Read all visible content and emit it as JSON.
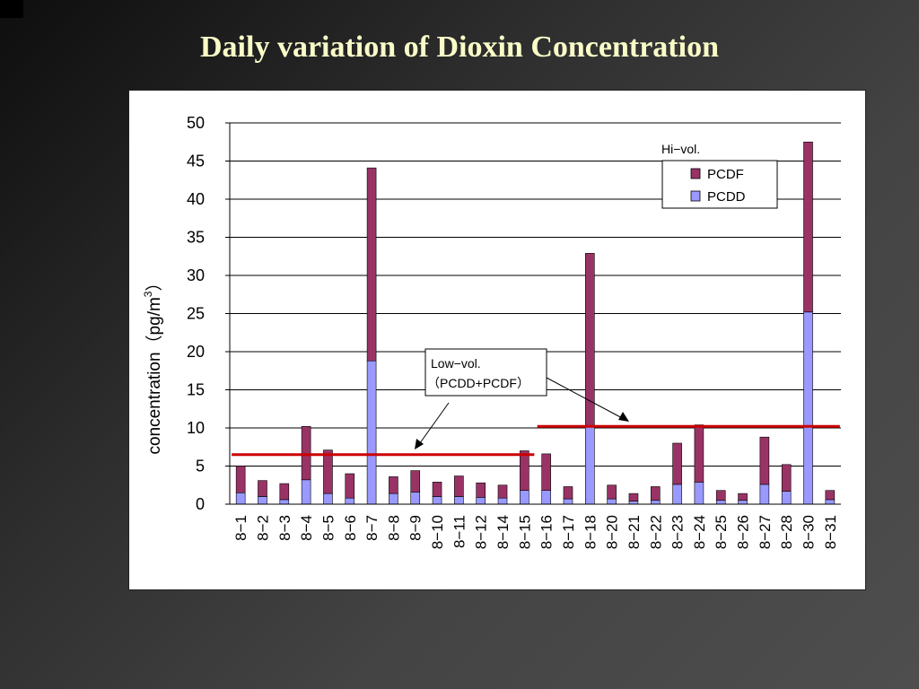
{
  "slide": {
    "title": "Daily variation of Dioxin Concentration"
  },
  "chart_data": {
    "type": "bar",
    "stacked": true,
    "ylabel": "concentration（pg/m³）",
    "ylabel_main": "concentration（pg/m",
    "ylabel_sup": "3",
    "ylabel_close": "）",
    "ylim": [
      0,
      50
    ],
    "yticks": [
      "0",
      "5",
      "10",
      "15",
      "20",
      "25",
      "30",
      "35",
      "40",
      "45",
      "50"
    ],
    "grid": true,
    "categories": [
      "8−1",
      "8−2",
      "8−3",
      "8−4",
      "8−5",
      "8−6",
      "8−7",
      "8−8",
      "8−9",
      "8−10",
      "8−11",
      "8−12",
      "8−14",
      "8−15",
      "8−16",
      "8−17",
      "8−18",
      "8−20",
      "8−21",
      "8−22",
      "8−23",
      "8−24",
      "8−25",
      "8−26",
      "8−27",
      "8−28",
      "8−30",
      "8−31"
    ],
    "series": [
      {
        "name": "PCDD",
        "color": "#9999ff",
        "values": [
          1.5,
          1.0,
          0.6,
          3.2,
          1.4,
          0.8,
          18.8,
          1.4,
          1.6,
          1.0,
          1.0,
          0.9,
          0.8,
          1.8,
          1.8,
          0.7,
          10.3,
          0.7,
          0.4,
          0.5,
          2.6,
          2.9,
          0.5,
          0.5,
          2.6,
          1.7,
          25.2,
          0.6
        ]
      },
      {
        "name": "PCDF",
        "color": "#993366",
        "values": [
          3.5,
          2.1,
          2.1,
          7.0,
          5.7,
          3.2,
          25.3,
          2.2,
          2.8,
          1.9,
          2.7,
          1.9,
          1.7,
          5.2,
          4.8,
          1.6,
          22.6,
          1.8,
          1.0,
          1.8,
          5.4,
          7.5,
          1.3,
          0.9,
          6.2,
          3.5,
          22.3,
          1.2
        ]
      }
    ],
    "legend": {
      "title": "Hi−vol.",
      "placement": "top-right"
    },
    "reference_lines": [
      {
        "name": "low-vol-period-1",
        "value": 6.5,
        "from": "8−1",
        "to": "8−15",
        "color": "#cc0000"
      },
      {
        "name": "low-vol-period-2",
        "value": 10.2,
        "from": "8−16",
        "to": "8−31",
        "color": "#cc0000"
      }
    ],
    "annotation": {
      "line1": "Low−vol.",
      "line2": "（PCDD+PCDF）"
    }
  }
}
